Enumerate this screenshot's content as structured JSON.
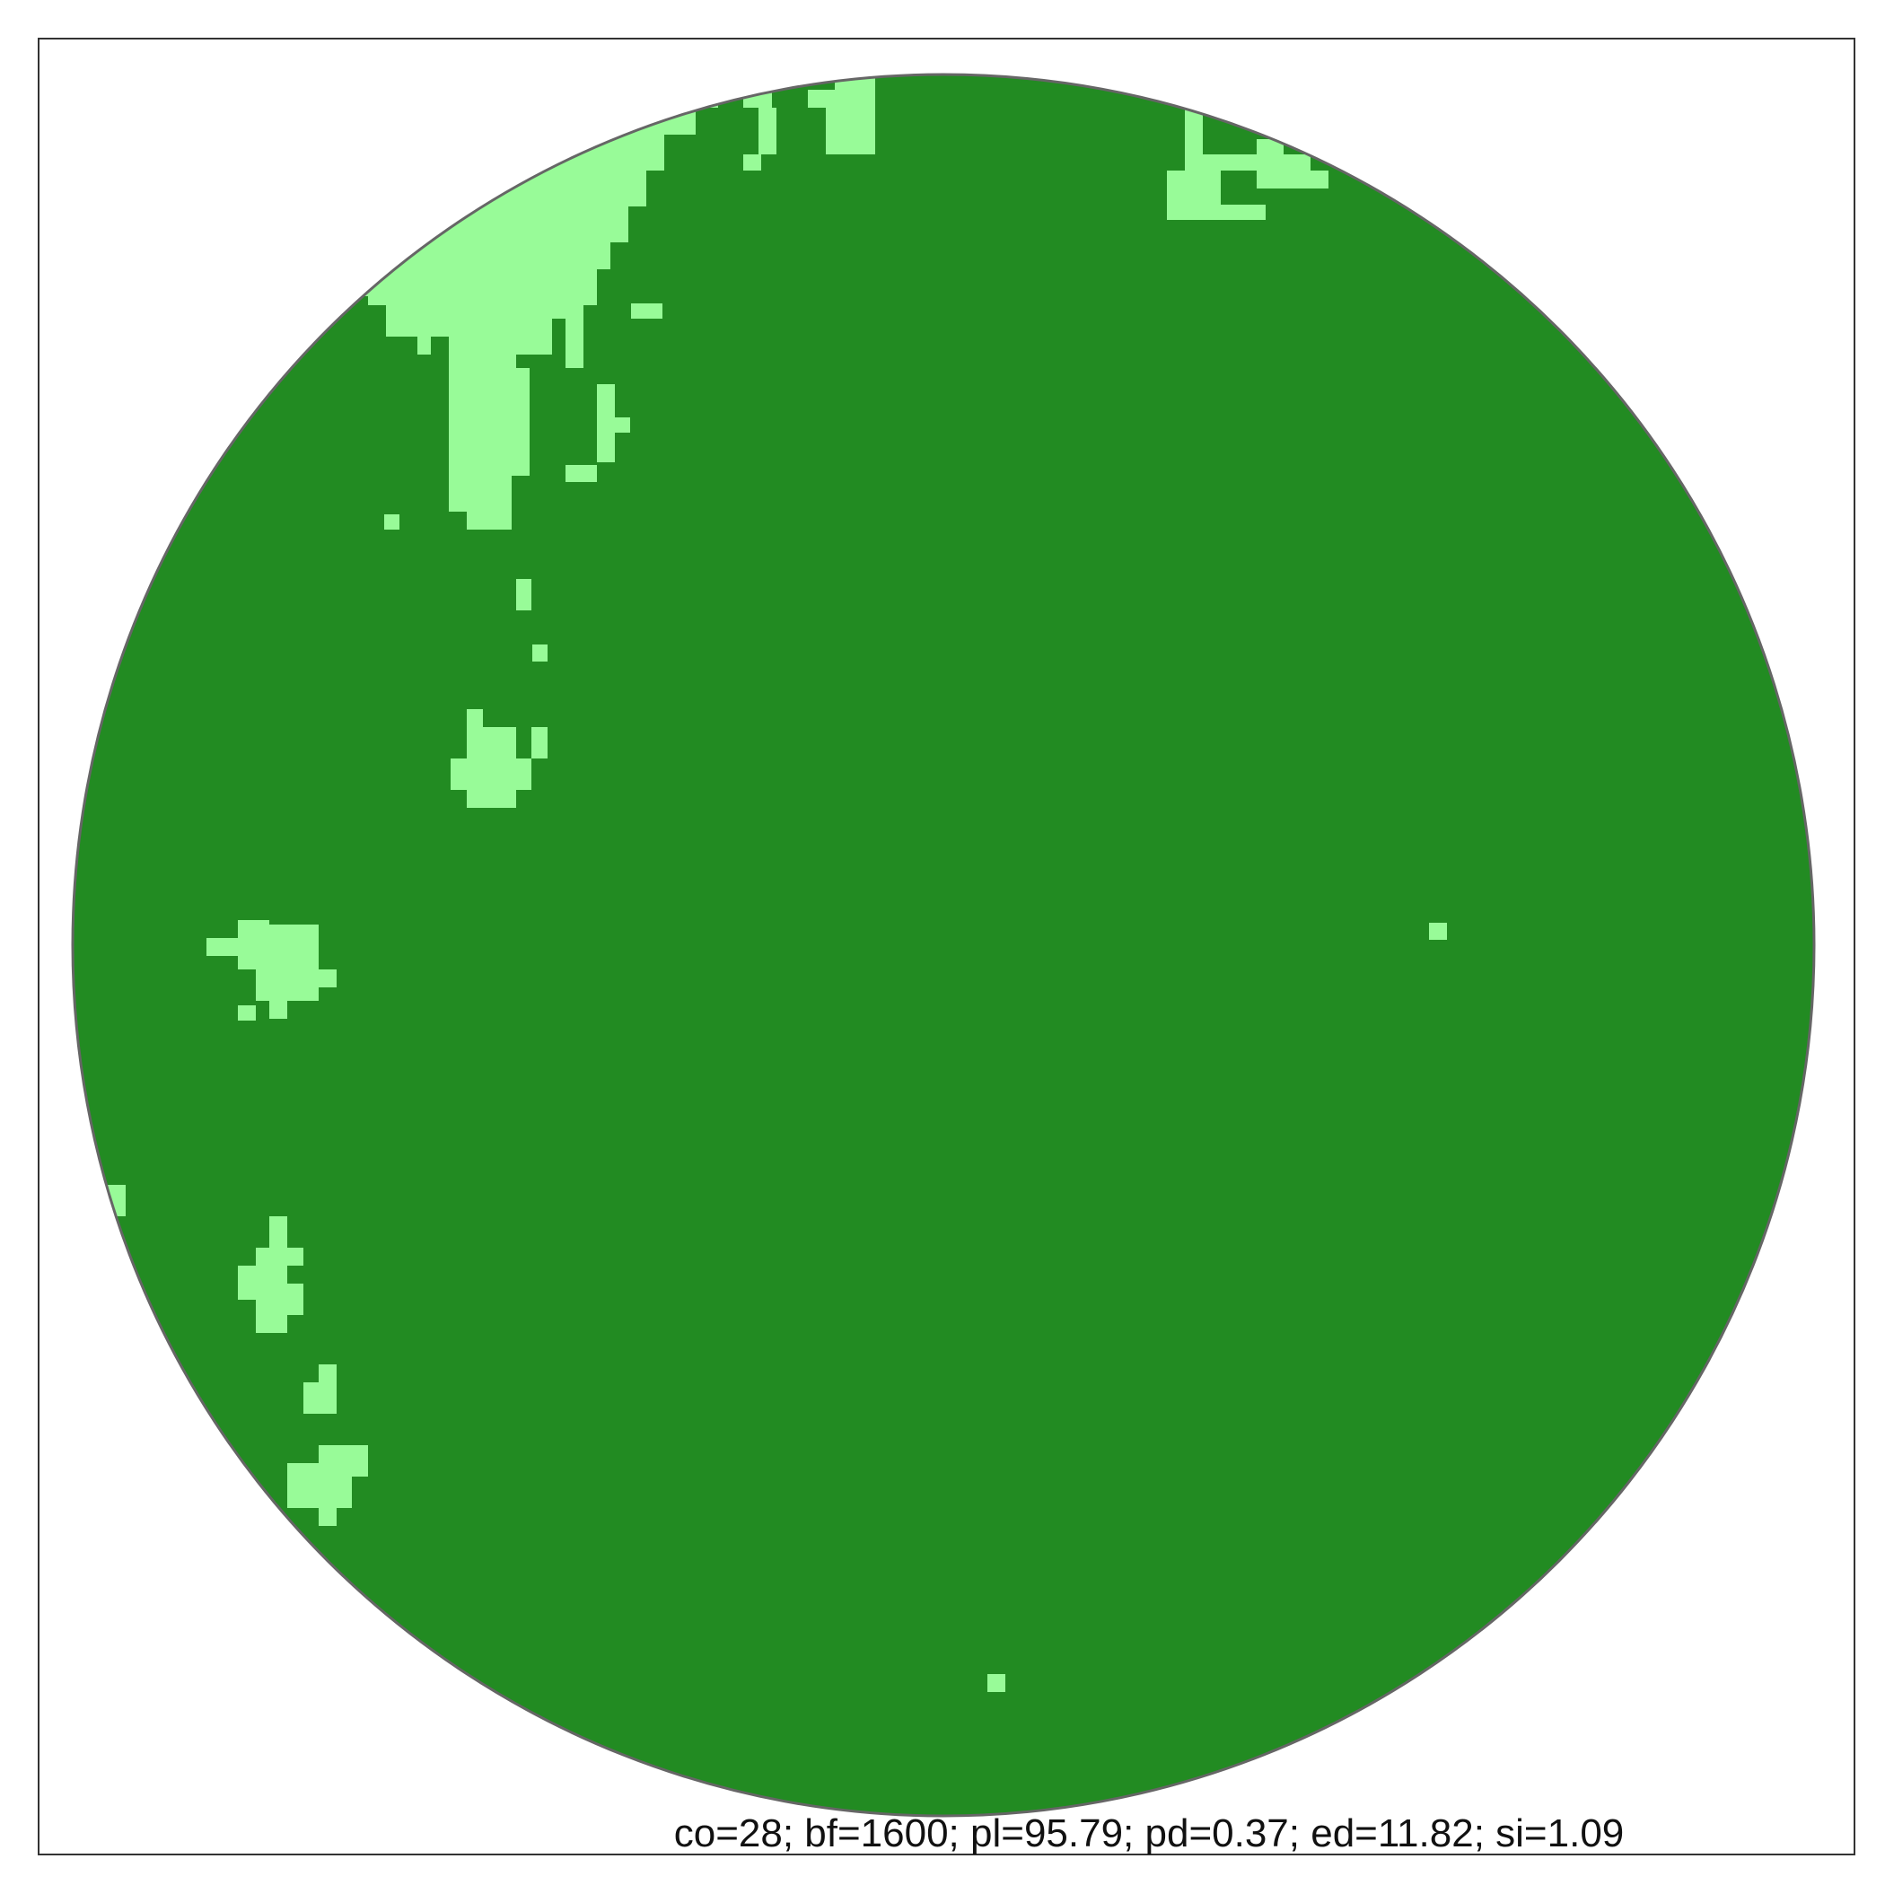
{
  "title": "",
  "metrics_caption": "co=28; bf=1600; pl=95.79; pd=0.37; ed=11.82; si=1.09",
  "metrics": {
    "co": 28,
    "bf": 1600,
    "pl": 95.79,
    "pd": 0.37,
    "ed": 11.82,
    "si": 1.09
  },
  "legend": [],
  "colors": {
    "forest": "#228B22",
    "clearing": "#98FB98",
    "boundary": "#666666",
    "frame": "#333333",
    "background": "#FFFFFF"
  }
}
